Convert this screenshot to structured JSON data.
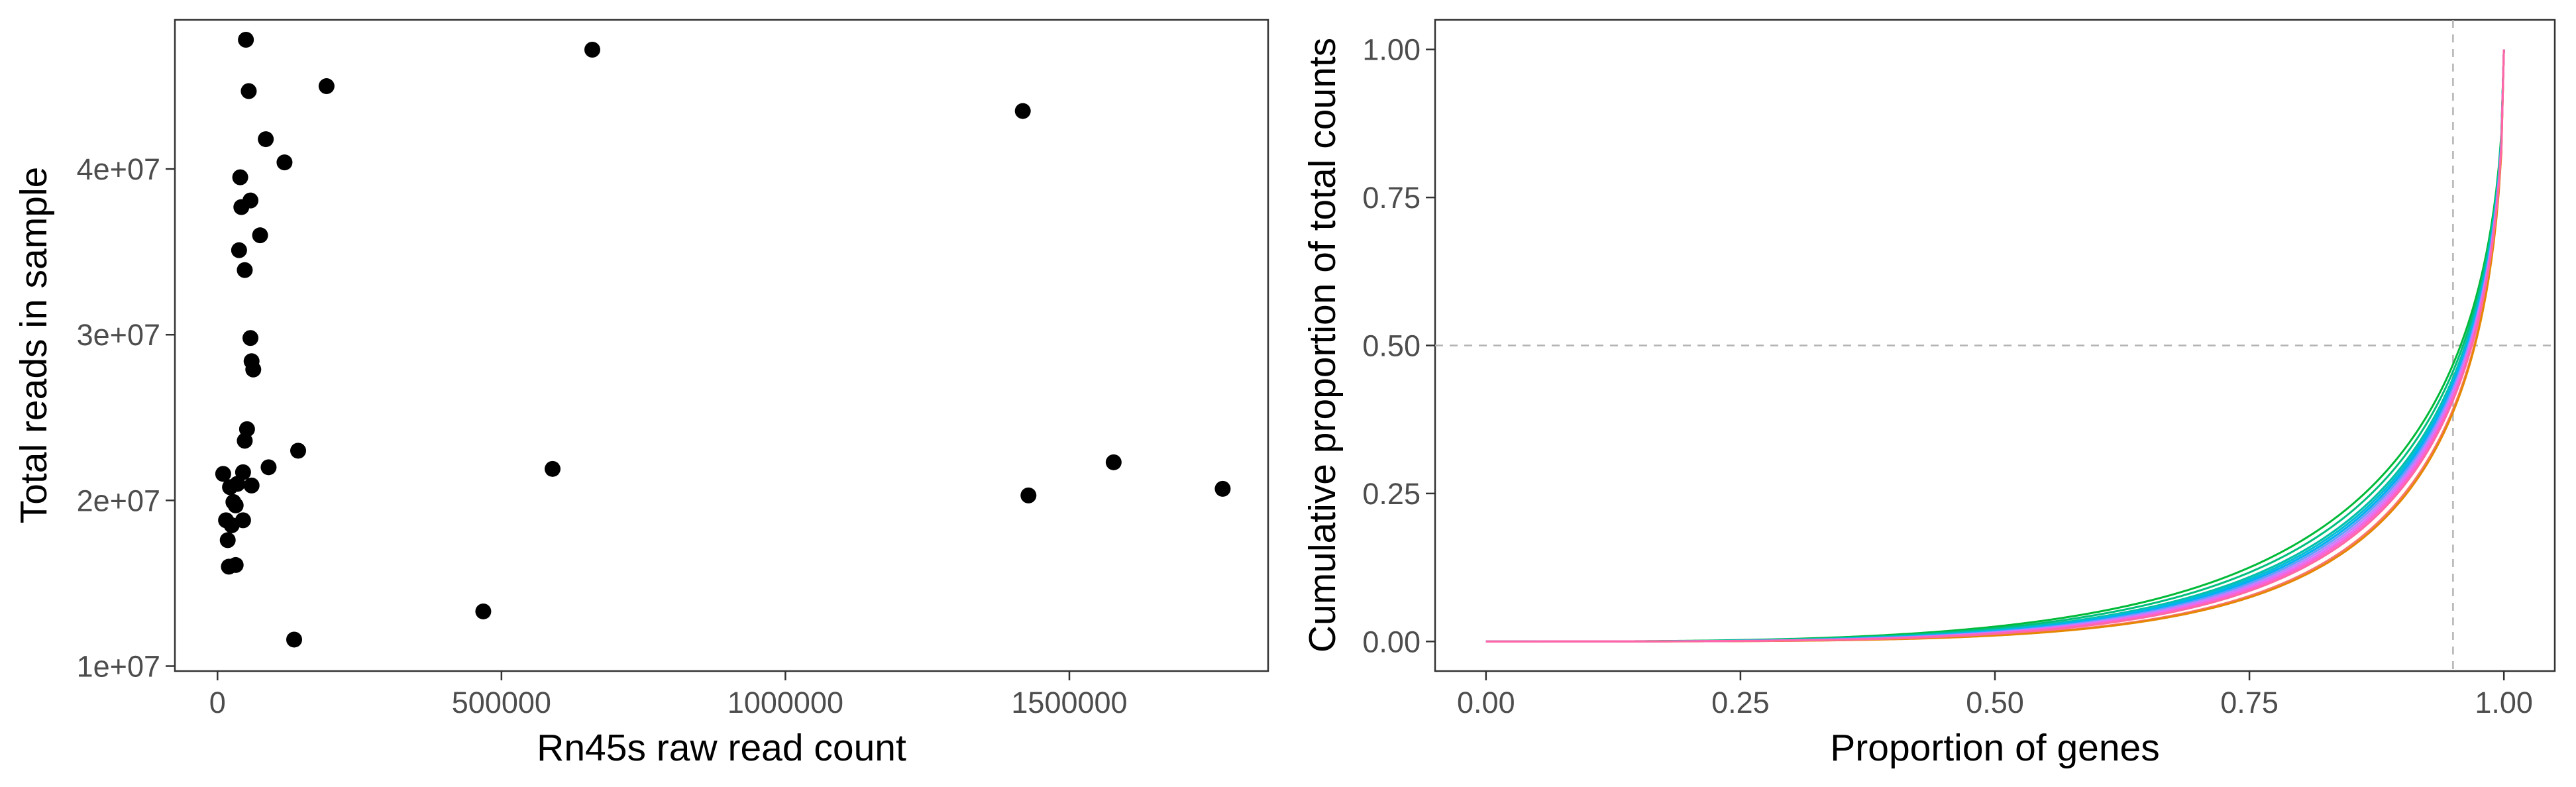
{
  "colors": {
    "panel_border": "#333333",
    "tick": "#333333",
    "tick_label": "#4d4d4d",
    "point": "#000000",
    "reference_line": "#b3b3b3"
  },
  "chart_data": [
    {
      "type": "scatter",
      "xlabel": "Rn45s raw read count",
      "ylabel": "Total reads in sample",
      "xlim": [
        -75000,
        1850000
      ],
      "ylim": [
        9700000,
        49000000
      ],
      "xticks": [
        0,
        500000,
        1000000,
        1500000
      ],
      "xtick_labels": [
        "0",
        "500000",
        "1000000",
        "1500000"
      ],
      "yticks": [
        10000000,
        20000000,
        30000000,
        40000000
      ],
      "ytick_labels": [
        "1e+07",
        "2e+07",
        "3e+07",
        "4e+07"
      ],
      "grid": false,
      "points": [
        [
          50000,
          47800000
        ],
        [
          660000,
          47200000
        ],
        [
          192000,
          45000000
        ],
        [
          55000,
          44700000
        ],
        [
          1418000,
          43500000
        ],
        [
          85000,
          41800000
        ],
        [
          118000,
          40400000
        ],
        [
          40000,
          39500000
        ],
        [
          58000,
          38100000
        ],
        [
          42000,
          37700000
        ],
        [
          75000,
          36000000
        ],
        [
          38000,
          35100000
        ],
        [
          48000,
          33900000
        ],
        [
          58000,
          29800000
        ],
        [
          60000,
          28400000
        ],
        [
          63000,
          27900000
        ],
        [
          52000,
          24300000
        ],
        [
          48000,
          23600000
        ],
        [
          142000,
          23000000
        ],
        [
          1578000,
          22300000
        ],
        [
          90000,
          22000000
        ],
        [
          590000,
          21900000
        ],
        [
          10000,
          21600000
        ],
        [
          45000,
          21700000
        ],
        [
          1770000,
          20700000
        ],
        [
          22000,
          20800000
        ],
        [
          35000,
          21000000
        ],
        [
          60000,
          20900000
        ],
        [
          1428000,
          20300000
        ],
        [
          28000,
          19900000
        ],
        [
          32000,
          19700000
        ],
        [
          15000,
          18800000
        ],
        [
          45000,
          18800000
        ],
        [
          25000,
          18500000
        ],
        [
          18000,
          17600000
        ],
        [
          20000,
          16000000
        ],
        [
          32000,
          16100000
        ],
        [
          468000,
          13300000
        ],
        [
          135000,
          11600000
        ]
      ]
    },
    {
      "type": "line",
      "xlabel": "Proportion of genes",
      "ylabel": "Cumulative proportion of total counts",
      "xlim": [
        -0.05,
        1.05
      ],
      "ylim": [
        -0.05,
        1.05
      ],
      "xticks": [
        0,
        0.25,
        0.5,
        0.75,
        1
      ],
      "xtick_labels": [
        "0.00",
        "0.25",
        "0.50",
        "0.75",
        "1.00"
      ],
      "yticks": [
        0,
        0.25,
        0.5,
        0.75,
        1
      ],
      "ytick_labels": [
        "0.00",
        "0.25",
        "0.50",
        "0.75",
        "1.00"
      ],
      "grid": false,
      "reference_lines": {
        "x": 0.95,
        "y": 0.5
      },
      "curve_family": "y = ((1 - (1 - x)^p) ^ q)",
      "series": [
        {
          "color": "#f8766d",
          "p": 0.5,
          "q": 3.7
        },
        {
          "color": "#e58700",
          "p": 0.5,
          "q": 3.75
        },
        {
          "color": "#c99800",
          "p": 0.5,
          "q": 3.5
        },
        {
          "color": "#a3a500",
          "p": 0.5,
          "q": 3.3
        },
        {
          "color": "#6bb100",
          "p": 0.5,
          "q": 3.2
        },
        {
          "color": "#00ba38",
          "p": 0.5,
          "q": 3.0
        },
        {
          "color": "#00bf7d",
          "p": 0.5,
          "q": 3.1
        },
        {
          "color": "#00c0af",
          "p": 0.5,
          "q": 3.2
        },
        {
          "color": "#00bcd8",
          "p": 0.5,
          "q": 3.25
        },
        {
          "color": "#00b0f6",
          "p": 0.5,
          "q": 3.3
        },
        {
          "color": "#619cff",
          "p": 0.5,
          "q": 3.35
        },
        {
          "color": "#b983ff",
          "p": 0.5,
          "q": 3.4
        },
        {
          "color": "#e76bf3",
          "p": 0.5,
          "q": 3.45
        },
        {
          "color": "#fd61d1",
          "p": 0.5,
          "q": 3.5
        },
        {
          "color": "#ff67a4",
          "p": 0.5,
          "q": 3.55
        }
      ]
    }
  ]
}
